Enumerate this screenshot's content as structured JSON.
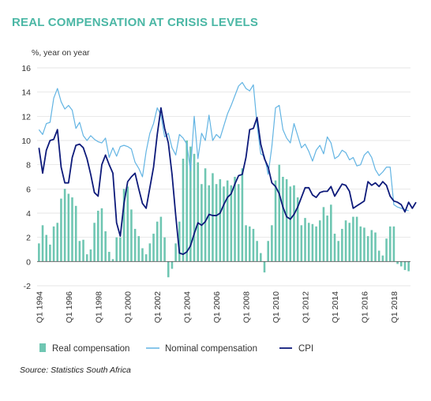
{
  "colors": {
    "title": "#4bb7a5",
    "real": "#6fc6b2",
    "nominal": "#62b4e3",
    "cpi": "#0d1a7a",
    "axis": "#555555"
  },
  "chart_data": {
    "type": "bar+line",
    "title": "REAL COMPENSATION AT CRISIS LEVELS",
    "ylabel": "%, year on year",
    "ylim": [
      -2,
      16
    ],
    "yticks": [
      -2,
      0,
      2,
      4,
      6,
      8,
      10,
      12,
      14,
      16
    ],
    "x_start_year": 1994,
    "x_tick_labels": [
      "Q1 1994",
      "Q1 1996",
      "Q1 1998",
      "Q1 2000",
      "Q1 2002",
      "Q1 2004",
      "Q1 2006",
      "Q1 2008",
      "Q1 2010",
      "Q1 2012",
      "Q1 2014",
      "Q1 2016",
      "Q1 2018"
    ],
    "x_tick_quarter_index": [
      0,
      8,
      16,
      24,
      32,
      40,
      48,
      56,
      64,
      72,
      80,
      88,
      96
    ],
    "legend": [
      "Real compensation",
      "Nominal compensation",
      "CPI"
    ],
    "series": [
      {
        "name": "Real compensation",
        "kind": "bar",
        "values": [
          1.5,
          3.0,
          2.2,
          1.4,
          2.9,
          3.2,
          5.2,
          6.0,
          5.6,
          5.3,
          4.6,
          1.7,
          1.8,
          0.6,
          1.0,
          3.2,
          4.2,
          4.4,
          2.5,
          0.8,
          0.2,
          2.0,
          2.0,
          6.0,
          6.2,
          4.3,
          2.7,
          2.1,
          1.1,
          0.6,
          1.5,
          2.3,
          3.3,
          3.7,
          2.0,
          -1.3,
          -0.6,
          1.5,
          3.3,
          8.5,
          10.0,
          9.5,
          8.9,
          8.2,
          6.4,
          7.7,
          6.3,
          7.3,
          6.4,
          6.8,
          6.2,
          6.7,
          6.3,
          7.0,
          6.4,
          7.7,
          3.0,
          2.9,
          2.7,
          1.7,
          0.7,
          -0.9,
          1.7,
          3.0,
          6.7,
          8.0,
          7.0,
          6.8,
          6.2,
          6.3,
          5.3,
          3.0,
          3.6,
          3.2,
          3.1,
          2.9,
          3.4,
          4.5,
          3.8,
          4.7,
          2.3,
          1.7,
          2.7,
          3.4,
          3.2,
          3.7,
          3.7,
          2.9,
          2.8,
          2.1,
          2.6,
          2.4,
          0.9,
          0.5,
          1.9,
          2.9,
          2.9,
          -0.2,
          -0.4,
          -0.7,
          -0.8
        ]
      },
      {
        "name": "Nominal compensation",
        "kind": "line",
        "values": [
          10.9,
          10.5,
          11.4,
          11.5,
          13.5,
          14.3,
          13.2,
          12.6,
          12.9,
          12.5,
          11.0,
          11.5,
          10.4,
          10.0,
          10.4,
          10.1,
          9.9,
          9.8,
          10.2,
          8.6,
          9.4,
          8.7,
          9.5,
          9.6,
          9.5,
          9.3,
          8.2,
          7.7,
          7.0,
          9.1,
          10.6,
          11.4,
          12.7,
          12.1,
          10.3,
          10.6,
          9.4,
          8.8,
          10.5,
          10.2,
          9.7,
          7.5,
          12.0,
          8.5,
          10.6,
          10.0,
          12.1,
          10.0,
          10.5,
          10.2,
          11.2,
          12.2,
          12.9,
          13.7,
          14.5,
          14.8,
          14.3,
          14.1,
          14.6,
          11.3,
          8.9,
          8.7,
          7.2,
          9.5,
          12.7,
          12.9,
          10.9,
          10.2,
          9.8,
          11.4,
          10.4,
          9.4,
          9.7,
          9.1,
          8.3,
          9.2,
          9.6,
          8.9,
          10.3,
          9.8,
          8.5,
          8.7,
          9.2,
          9.0,
          8.4,
          8.6,
          7.9,
          8.0,
          8.8,
          9.1,
          8.6,
          7.6,
          7.1,
          7.4,
          7.8,
          7.8,
          4.7,
          4.5,
          4.4,
          4.3,
          4.2
        ]
      },
      {
        "name": "CPI",
        "kind": "line",
        "values": [
          9.4,
          7.3,
          9.2,
          10.0,
          10.1,
          10.9,
          7.8,
          6.5,
          6.5,
          8.6,
          9.6,
          9.7,
          9.4,
          8.5,
          7.2,
          5.7,
          5.4,
          8.0,
          8.8,
          8.0,
          7.3,
          3.2,
          2.1,
          4.8,
          6.6,
          7.0,
          7.3,
          6.0,
          4.8,
          4.4,
          6.1,
          7.8,
          10.5,
          12.7,
          11.0,
          9.8,
          7.2,
          3.8,
          0.7,
          0.6,
          0.8,
          1.3,
          2.3,
          3.2,
          3.0,
          3.3,
          3.9,
          3.8,
          3.8,
          4.0,
          4.7,
          5.3,
          5.6,
          6.4,
          7.1,
          7.2,
          8.6,
          10.9,
          11.0,
          11.9,
          9.7,
          8.5,
          7.8,
          6.5,
          6.2,
          5.6,
          4.5,
          3.7,
          3.5,
          3.9,
          4.5,
          5.3,
          6.1,
          6.1,
          5.5,
          5.3,
          5.7,
          5.8,
          5.8,
          6.2,
          5.4,
          5.9,
          6.4,
          6.3,
          5.8,
          4.4,
          4.6,
          4.8,
          5.0,
          6.6,
          6.3,
          6.5,
          6.2,
          6.6,
          6.3,
          5.4,
          5.0,
          4.9,
          4.7,
          4.1,
          4.9,
          4.4,
          4.9
        ]
      }
    ],
    "source": "Source: Statistics South Africa"
  }
}
